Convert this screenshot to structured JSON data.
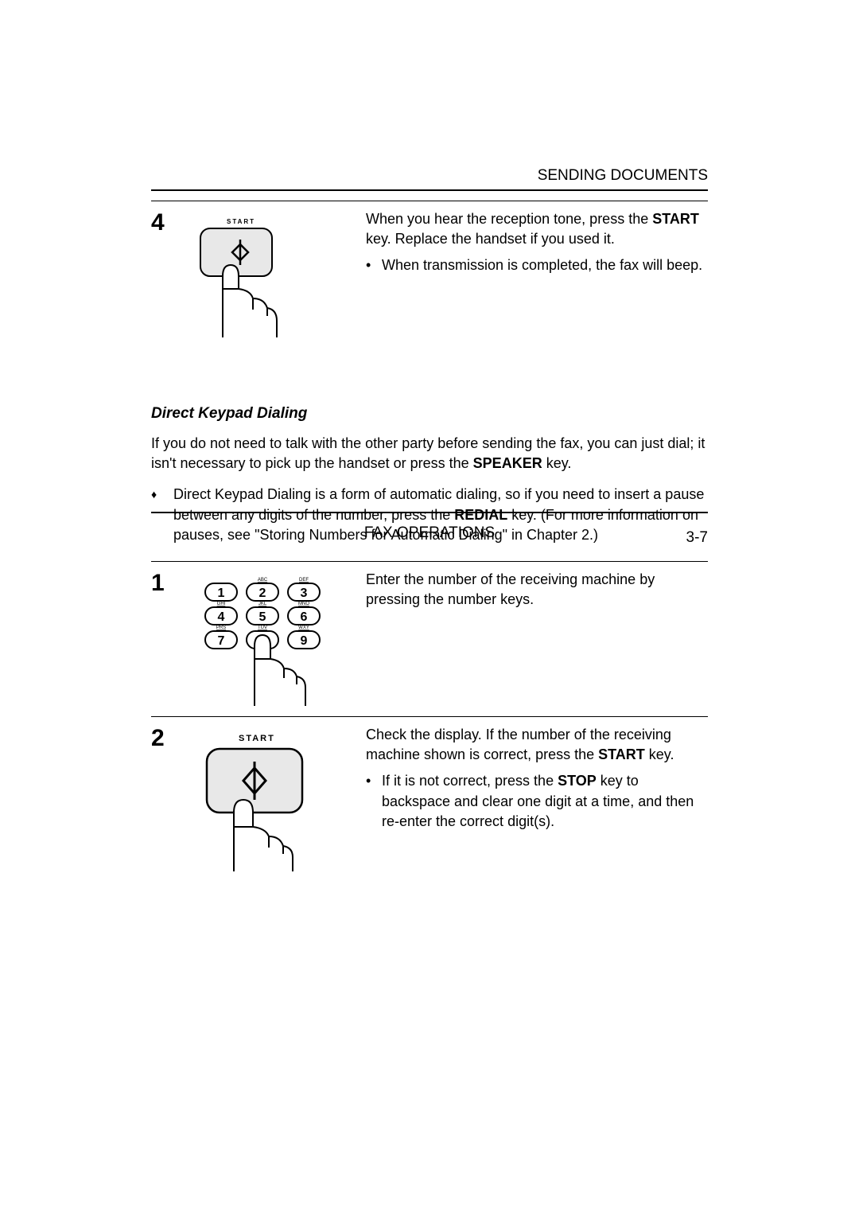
{
  "header": "SENDING DOCUMENTS",
  "step4": {
    "number": "4",
    "start_label": "START",
    "text_pre": "When you hear the reception tone, press the ",
    "key1": "START",
    "text_mid": " key. Replace the handset if you used it.",
    "bullet": "When transmission is completed, the fax will beep."
  },
  "section": {
    "title": "Direct Keypad Dialing",
    "intro_pre": "If you do not need to talk with the other party before sending the fax, you can just dial; it isn't necessary to pick up the handset or press the ",
    "intro_key": "SPEAKER",
    "intro_post": " key.",
    "diamond_pre": "Direct Keypad Dialing is a form of automatic dialing, so if you need to insert a pause between any digits of the number, press the ",
    "diamond_key": "REDIAL",
    "diamond_post": " key. (For more information on pauses, see \"Storing Numbers for Automatic Dialing\" in Chapter 2.)"
  },
  "step1": {
    "number": "1",
    "keypad": {
      "labels": [
        "",
        "ABC",
        "DEF",
        "GHI",
        "JKL",
        "MNO",
        "PRS",
        "TUV",
        "WXY"
      ],
      "nums": [
        "1",
        "2",
        "3",
        "4",
        "5",
        "6",
        "7",
        "8",
        "9"
      ]
    },
    "text": "Enter the number of the receiving machine by pressing the number keys."
  },
  "step2": {
    "number": "2",
    "start_label": "START",
    "text_pre": "Check the display. If the number of the receiving machine shown is correct, press the ",
    "key1": "START",
    "text_post": " key.",
    "bullet_pre": "If it is not correct, press the ",
    "bullet_key": "STOP",
    "bullet_post": " key to backspace and clear one digit at a time, and then re-enter the correct digit(s)."
  },
  "footer": {
    "center": "FAX OPERATIONS",
    "right": "3-7"
  },
  "colors": {
    "key_fill": "#e8e8e8",
    "stroke": "#000000"
  }
}
